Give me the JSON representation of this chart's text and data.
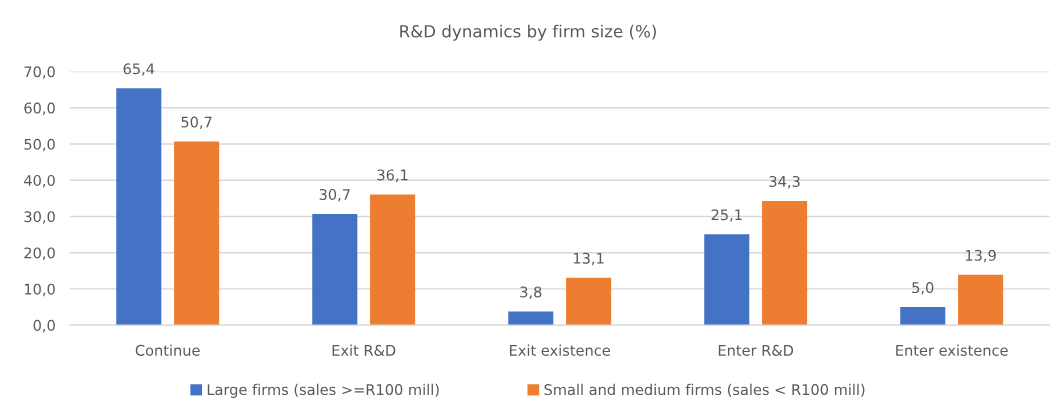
{
  "chart_data": {
    "type": "bar",
    "title": "R&D dynamics by firm size (%)",
    "categories": [
      "Continue",
      "Exit R&D",
      "Exit existence",
      "Enter R&D",
      "Enter existence"
    ],
    "series": [
      {
        "name": "Large firms (sales >=R100 mill)",
        "color": "#4472c4",
        "values": [
          65.4,
          30.7,
          3.8,
          25.1,
          5.0
        ],
        "value_labels": [
          "65,4",
          "30,7",
          "3,8",
          "25,1",
          "5,0"
        ]
      },
      {
        "name": "Small and medium firms (sales < R100 mill)",
        "color": "#ed7d31",
        "values": [
          50.7,
          36.1,
          13.1,
          34.3,
          13.9
        ],
        "value_labels": [
          "50,7",
          "36,1",
          "13,1",
          "34,3",
          "13,9"
        ]
      }
    ],
    "ylim": [
      0,
      70
    ],
    "yticks": [
      {
        "value": 0,
        "label": "0,0"
      },
      {
        "value": 10,
        "label": "10,0"
      },
      {
        "value": 20,
        "label": "20,0"
      },
      {
        "value": 30,
        "label": "30,0"
      },
      {
        "value": 40,
        "label": "40,0"
      },
      {
        "value": 50,
        "label": "50,0"
      },
      {
        "value": 60,
        "label": "60,0"
      },
      {
        "value": 70,
        "label": "70,0"
      }
    ],
    "grid": "y",
    "legend": "bottom"
  }
}
